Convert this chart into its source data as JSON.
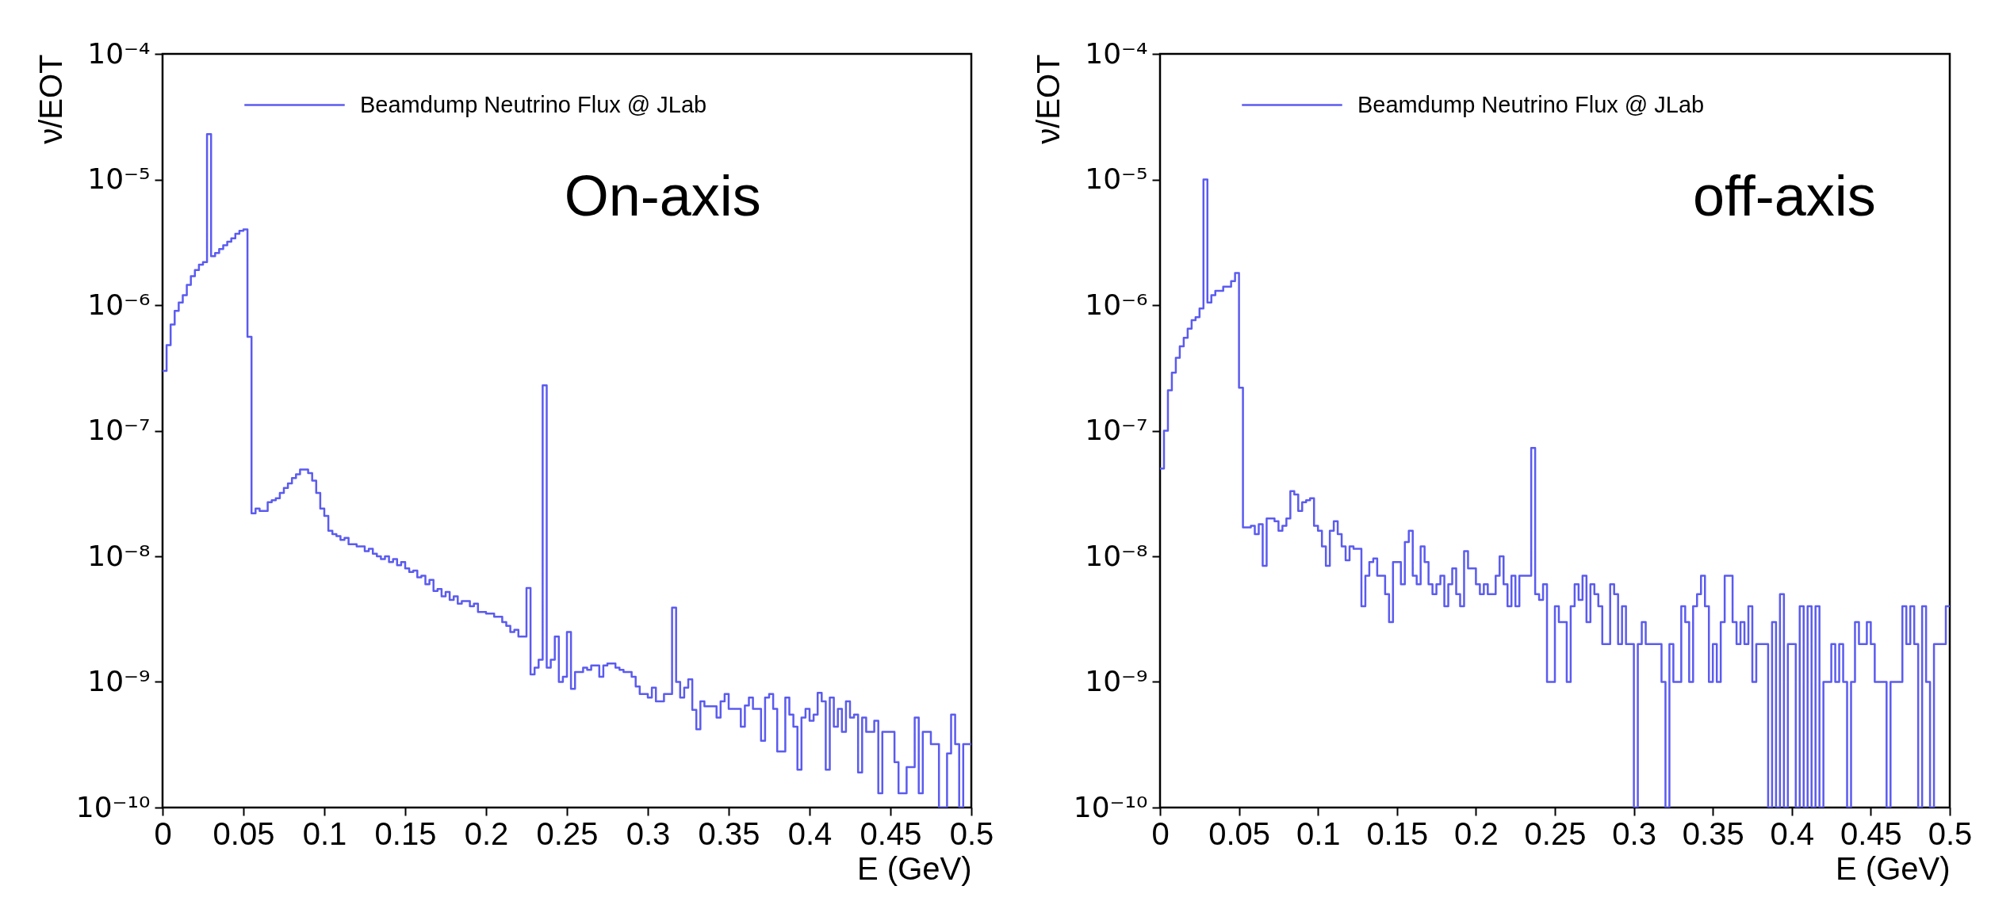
{
  "chart_data": [
    {
      "type": "step",
      "ylabel": "ν/EOT",
      "xlabel": "E (GeV)",
      "annotations": [
        "On-axis"
      ],
      "legend": "top",
      "log": true,
      "xlim": [
        0,
        0.5
      ],
      "xticks": [
        0,
        0.05,
        0.1,
        0.15,
        0.2,
        0.25,
        0.3,
        0.35,
        0.4,
        0.45,
        0.5
      ],
      "ylim": [
        1e-10,
        0.0001
      ],
      "yticks": [
        {
          "value": 1e-10,
          "label": "10⁻¹⁰"
        },
        {
          "value": 1e-09,
          "label": "10⁻⁹"
        },
        {
          "value": 1e-08,
          "label": "10⁻⁸"
        },
        {
          "value": 1e-07,
          "label": "10⁻⁷"
        },
        {
          "value": 1e-06,
          "label": "10⁻⁶"
        },
        {
          "value": 1e-05,
          "label": "10⁻⁵"
        },
        {
          "value": 0.0001,
          "label": "10⁻⁴"
        }
      ],
      "x": [
        0,
        0.0025,
        0.005,
        0.0075,
        0.01,
        0.0125,
        0.015,
        0.0175,
        0.02,
        0.0225,
        0.025,
        0.0275,
        0.03,
        0.0325,
        0.035,
        0.0375,
        0.04,
        0.0425,
        0.045,
        0.0475,
        0.05,
        0.0525,
        0.055,
        0.0575,
        0.06,
        0.0625,
        0.065,
        0.0675,
        0.07,
        0.0725,
        0.075,
        0.0775,
        0.08,
        0.0825,
        0.085,
        0.09,
        0.0925,
        0.095,
        0.0975,
        0.1,
        0.1025,
        0.105,
        0.1075,
        0.11,
        0.1125,
        0.115,
        0.12,
        0.125,
        0.1275,
        0.13,
        0.1325,
        0.135,
        0.1375,
        0.14,
        0.1425,
        0.145,
        0.1475,
        0.15,
        0.1525,
        0.155,
        0.1575,
        0.16,
        0.1625,
        0.165,
        0.1675,
        0.17,
        0.1725,
        0.175,
        0.1775,
        0.18,
        0.1825,
        0.185,
        0.19,
        0.1925,
        0.195,
        0.2,
        0.205,
        0.21,
        0.2125,
        0.215,
        0.2175,
        0.22,
        0.225,
        0.2275,
        0.23,
        0.2325,
        0.235,
        0.2375,
        0.24,
        0.2425,
        0.245,
        0.2475,
        0.25,
        0.2525,
        0.255,
        0.26,
        0.2625,
        0.265,
        0.27,
        0.2725,
        0.275,
        0.28,
        0.2825,
        0.285,
        0.29,
        0.2925,
        0.295,
        0.3,
        0.3025,
        0.305,
        0.31,
        0.315,
        0.3175,
        0.32,
        0.3225,
        0.325,
        0.3275,
        0.33,
        0.3325,
        0.335,
        0.34,
        0.3425,
        0.345,
        0.3475,
        0.35,
        0.355,
        0.3575,
        0.36,
        0.3625,
        0.365,
        0.37,
        0.3725,
        0.375,
        0.3775,
        0.38,
        0.3825,
        0.385,
        0.3875,
        0.39,
        0.3925,
        0.395,
        0.3975,
        0.4,
        0.4025,
        0.405,
        0.4075,
        0.41,
        0.4125,
        0.415,
        0.4175,
        0.42,
        0.4225,
        0.425,
        0.4275,
        0.43,
        0.4325,
        0.435,
        0.44,
        0.4425,
        0.445,
        0.45,
        0.4525,
        0.455,
        0.46,
        0.465,
        0.4675,
        0.47,
        0.475,
        0.48,
        0.4825,
        0.485,
        0.4875,
        0.49,
        0.4925,
        0.495,
        0.5
      ],
      "series": [
        {
          "name": "Beamdump Neutrino Flux @ JLab",
          "color": "#5b5bf0",
          "values": [
            3e-07,
            4.8e-07,
            7e-07,
            9e-07,
            1.05e-06,
            1.2e-06,
            1.45e-06,
            1.7e-06,
            1.9e-06,
            2.1e-06,
            2.2e-06,
            2.3e-05,
            2.45e-06,
            2.6e-06,
            2.8e-06,
            3e-06,
            3.2e-06,
            3.4e-06,
            3.7e-06,
            3.9e-06,
            4e-06,
            5.6e-07,
            2.2e-08,
            2.4e-08,
            2.3e-08,
            2.3e-08,
            2.7e-08,
            2.8e-08,
            2.9e-08,
            3.2e-08,
            3.5e-08,
            3.8e-08,
            4.2e-08,
            4.5e-08,
            4.9e-08,
            4.6e-08,
            4e-08,
            3.2e-08,
            2.4e-08,
            2.1e-08,
            1.6e-08,
            1.5e-08,
            1.45e-08,
            1.35e-08,
            1.4e-08,
            1.25e-08,
            1.2e-08,
            1.1e-08,
            1.15e-08,
            1.05e-08,
            1e-08,
            9.5e-09,
            1e-08,
            9e-09,
            9.5e-09,
            8.5e-09,
            9e-09,
            8e-09,
            7.5e-09,
            7.7e-09,
            6.8e-09,
            7e-09,
            6e-09,
            6.5e-09,
            5.3e-09,
            5.5e-09,
            4.8e-09,
            5.2e-09,
            4.5e-09,
            4.8e-09,
            4.2e-09,
            4.4e-09,
            4e-09,
            4.2e-09,
            3.6e-09,
            3.5e-09,
            3.3e-09,
            3e-09,
            2.8e-09,
            2.5e-09,
            2.6e-09,
            2.3e-09,
            5.6e-09,
            1.15e-09,
            1.3e-09,
            1.5e-09,
            2.3e-07,
            1.3e-09,
            1.5e-09,
            2.3e-09,
            1e-09,
            1.1e-09,
            2.5e-09,
            8.8e-10,
            1.2e-09,
            1.3e-09,
            1.25e-09,
            1.35e-09,
            1.1e-09,
            1.35e-09,
            1.4e-09,
            1.3e-09,
            1.25e-09,
            1.2e-09,
            1.1e-09,
            9.2e-10,
            8e-10,
            7.5e-10,
            9e-10,
            7e-10,
            8e-10,
            3.9e-09,
            1e-09,
            7.5e-10,
            9e-10,
            1.05e-09,
            6e-10,
            4.2e-10,
            7e-10,
            6.4e-10,
            6.4e-10,
            5.2e-10,
            7e-10,
            8e-10,
            6.1e-10,
            6.1e-10,
            4.4e-10,
            6.5e-10,
            7.5e-10,
            6.1e-10,
            3.4e-10,
            7.5e-10,
            8e-10,
            6.1e-10,
            2.8e-10,
            2.8e-10,
            7.5e-10,
            5.5e-10,
            4.4e-10,
            2e-10,
            5.2e-10,
            6.1e-10,
            4.9e-10,
            5.5e-10,
            8.2e-10,
            7e-10,
            2e-10,
            7.5e-10,
            4.4e-10,
            6.1e-10,
            4e-10,
            7e-10,
            5.2e-10,
            5.5e-10,
            1.9e-10,
            5.2e-10,
            4e-10,
            4.9e-10,
            1.3e-10,
            4e-10,
            4e-10,
            2.3e-10,
            1.3e-10,
            2.1e-10,
            5.2e-10,
            1.3e-10,
            4e-10,
            3.2e-10,
            1e-10,
            1e-10,
            2.7e-10,
            5.5e-10,
            3.2e-10,
            1e-10,
            3.2e-10,
            3.2e-10
          ]
        }
      ]
    },
    {
      "type": "step",
      "ylabel": "ν/EOT",
      "xlabel": "E (GeV)",
      "annotations": [
        "off-axis"
      ],
      "legend": "top",
      "log": true,
      "xlim": [
        0,
        0.5
      ],
      "xticks": [
        0,
        0.05,
        0.1,
        0.15,
        0.2,
        0.25,
        0.3,
        0.35,
        0.4,
        0.45,
        0.5
      ],
      "ylim": [
        1e-10,
        0.0001
      ],
      "yticks": [
        {
          "value": 1e-10,
          "label": "10⁻¹⁰"
        },
        {
          "value": 1e-09,
          "label": "10⁻⁹"
        },
        {
          "value": 1e-08,
          "label": "10⁻⁸"
        },
        {
          "value": 1e-07,
          "label": "10⁻⁷"
        },
        {
          "value": 1e-06,
          "label": "10⁻⁶"
        },
        {
          "value": 1e-05,
          "label": "10⁻⁵"
        },
        {
          "value": 0.0001,
          "label": "10⁻⁴"
        }
      ],
      "x": [
        0,
        0.0025,
        0.005,
        0.0075,
        0.01,
        0.0125,
        0.015,
        0.0175,
        0.02,
        0.0225,
        0.025,
        0.0275,
        0.03,
        0.0325,
        0.035,
        0.04,
        0.045,
        0.0475,
        0.05,
        0.0525,
        0.0575,
        0.06,
        0.0625,
        0.065,
        0.0675,
        0.0725,
        0.075,
        0.0775,
        0.08,
        0.0825,
        0.085,
        0.0875,
        0.09,
        0.0925,
        0.095,
        0.0975,
        0.1,
        0.1025,
        0.105,
        0.1075,
        0.11,
        0.1125,
        0.115,
        0.1175,
        0.12,
        0.1225,
        0.1275,
        0.13,
        0.1325,
        0.135,
        0.1375,
        0.1425,
        0.145,
        0.1475,
        0.1525,
        0.155,
        0.1575,
        0.16,
        0.1625,
        0.165,
        0.1675,
        0.17,
        0.1725,
        0.175,
        0.1775,
        0.18,
        0.1825,
        0.185,
        0.1875,
        0.19,
        0.1925,
        0.195,
        0.2,
        0.2025,
        0.205,
        0.2075,
        0.2125,
        0.215,
        0.2175,
        0.22,
        0.2225,
        0.225,
        0.2275,
        0.235,
        0.2375,
        0.24,
        0.2425,
        0.245,
        0.25,
        0.2525,
        0.2575,
        0.26,
        0.2625,
        0.265,
        0.2675,
        0.27,
        0.2725,
        0.275,
        0.2775,
        0.28,
        0.285,
        0.2875,
        0.29,
        0.2925,
        0.295,
        0.3,
        0.3025,
        0.305,
        0.3075,
        0.3175,
        0.32,
        0.3225,
        0.325,
        0.33,
        0.3325,
        0.335,
        0.3375,
        0.34,
        0.3425,
        0.345,
        0.3475,
        0.35,
        0.3525,
        0.355,
        0.3575,
        0.3625,
        0.365,
        0.3675,
        0.37,
        0.3725,
        0.375,
        0.3775,
        0.385,
        0.3875,
        0.39,
        0.3925,
        0.395,
        0.3975,
        0.4025,
        0.405,
        0.4075,
        0.41,
        0.4125,
        0.415,
        0.4175,
        0.42,
        0.425,
        0.4275,
        0.43,
        0.4325,
        0.435,
        0.4375,
        0.44,
        0.4425,
        0.4475,
        0.45,
        0.4525,
        0.46,
        0.4625,
        0.47,
        0.4725,
        0.475,
        0.4775,
        0.48,
        0.4825,
        0.485,
        0.4875,
        0.49,
        0.4975,
        0.5
      ],
      "series": [
        {
          "name": "Beamdump Neutrino Flux @ JLab",
          "color": "#5b5bf0",
          "values": [
            5e-08,
            1e-07,
            2.1e-07,
            2.9e-07,
            3.8e-07,
            4.7e-07,
            5.5e-07,
            6.5e-07,
            7.6e-07,
            8e-07,
            9.4e-07,
            1e-05,
            1.05e-06,
            1.2e-06,
            1.3e-06,
            1.4e-06,
            1.55e-06,
            1.8e-06,
            2.2e-07,
            1.7e-08,
            1.75e-08,
            1.5e-08,
            1.8e-08,
            8.4e-09,
            2e-08,
            1.9e-08,
            1.6e-08,
            1.75e-08,
            2e-08,
            3.3e-08,
            3.1e-08,
            2.3e-08,
            2.7e-08,
            2.8e-08,
            2.9e-08,
            1.75e-08,
            1.6e-08,
            1.2e-08,
            8.4e-09,
            1.6e-08,
            1.9e-08,
            1.5e-08,
            1.2e-08,
            9.3e-09,
            1.2e-08,
            1.15e-08,
            4e-09,
            7e-09,
            9e-09,
            9.6e-09,
            7e-09,
            5e-09,
            3e-09,
            9e-09,
            6e-09,
            1.3e-08,
            1.6e-08,
            7e-09,
            6e-09,
            1.2e-08,
            9e-09,
            6e-09,
            5e-09,
            6e-09,
            7e-09,
            4e-09,
            6e-09,
            8e-09,
            5e-09,
            4e-09,
            1.1e-08,
            8e-09,
            6e-09,
            5e-09,
            6e-09,
            5e-09,
            7e-09,
            1e-08,
            6e-09,
            4e-09,
            7e-09,
            4e-09,
            7e-09,
            7.3e-08,
            5e-09,
            4.5e-09,
            6e-09,
            1e-09,
            4e-09,
            3e-09,
            1e-09,
            4e-09,
            6e-09,
            4.5e-09,
            7e-09,
            3e-09,
            6e-09,
            5e-09,
            4e-09,
            2e-09,
            6e-09,
            5e-09,
            2e-09,
            4e-09,
            2e-09,
            1e-10,
            2e-09,
            3e-09,
            2e-09,
            1e-09,
            1e-10,
            2e-09,
            1e-09,
            4e-09,
            3e-09,
            1e-09,
            4e-09,
            5e-09,
            7e-09,
            4e-09,
            1e-09,
            2e-09,
            1e-09,
            3e-09,
            7e-09,
            3e-09,
            2e-09,
            3e-09,
            2e-09,
            4e-09,
            1e-09,
            2e-09,
            1e-10,
            3e-09,
            1e-10,
            5e-09,
            1e-10,
            2e-09,
            1e-10,
            4e-09,
            1e-10,
            4e-09,
            1e-10,
            4e-09,
            1e-10,
            1e-09,
            2e-09,
            1e-09,
            2e-09,
            1e-09,
            1e-10,
            1e-09,
            3e-09,
            2e-09,
            3e-09,
            2e-09,
            1e-09,
            1e-10,
            1e-09,
            4e-09,
            2e-09,
            4e-09,
            2e-09,
            1e-10,
            4e-09,
            1e-09,
            1e-10,
            2e-09,
            4e-09,
            4e-09
          ]
        }
      ]
    }
  ]
}
